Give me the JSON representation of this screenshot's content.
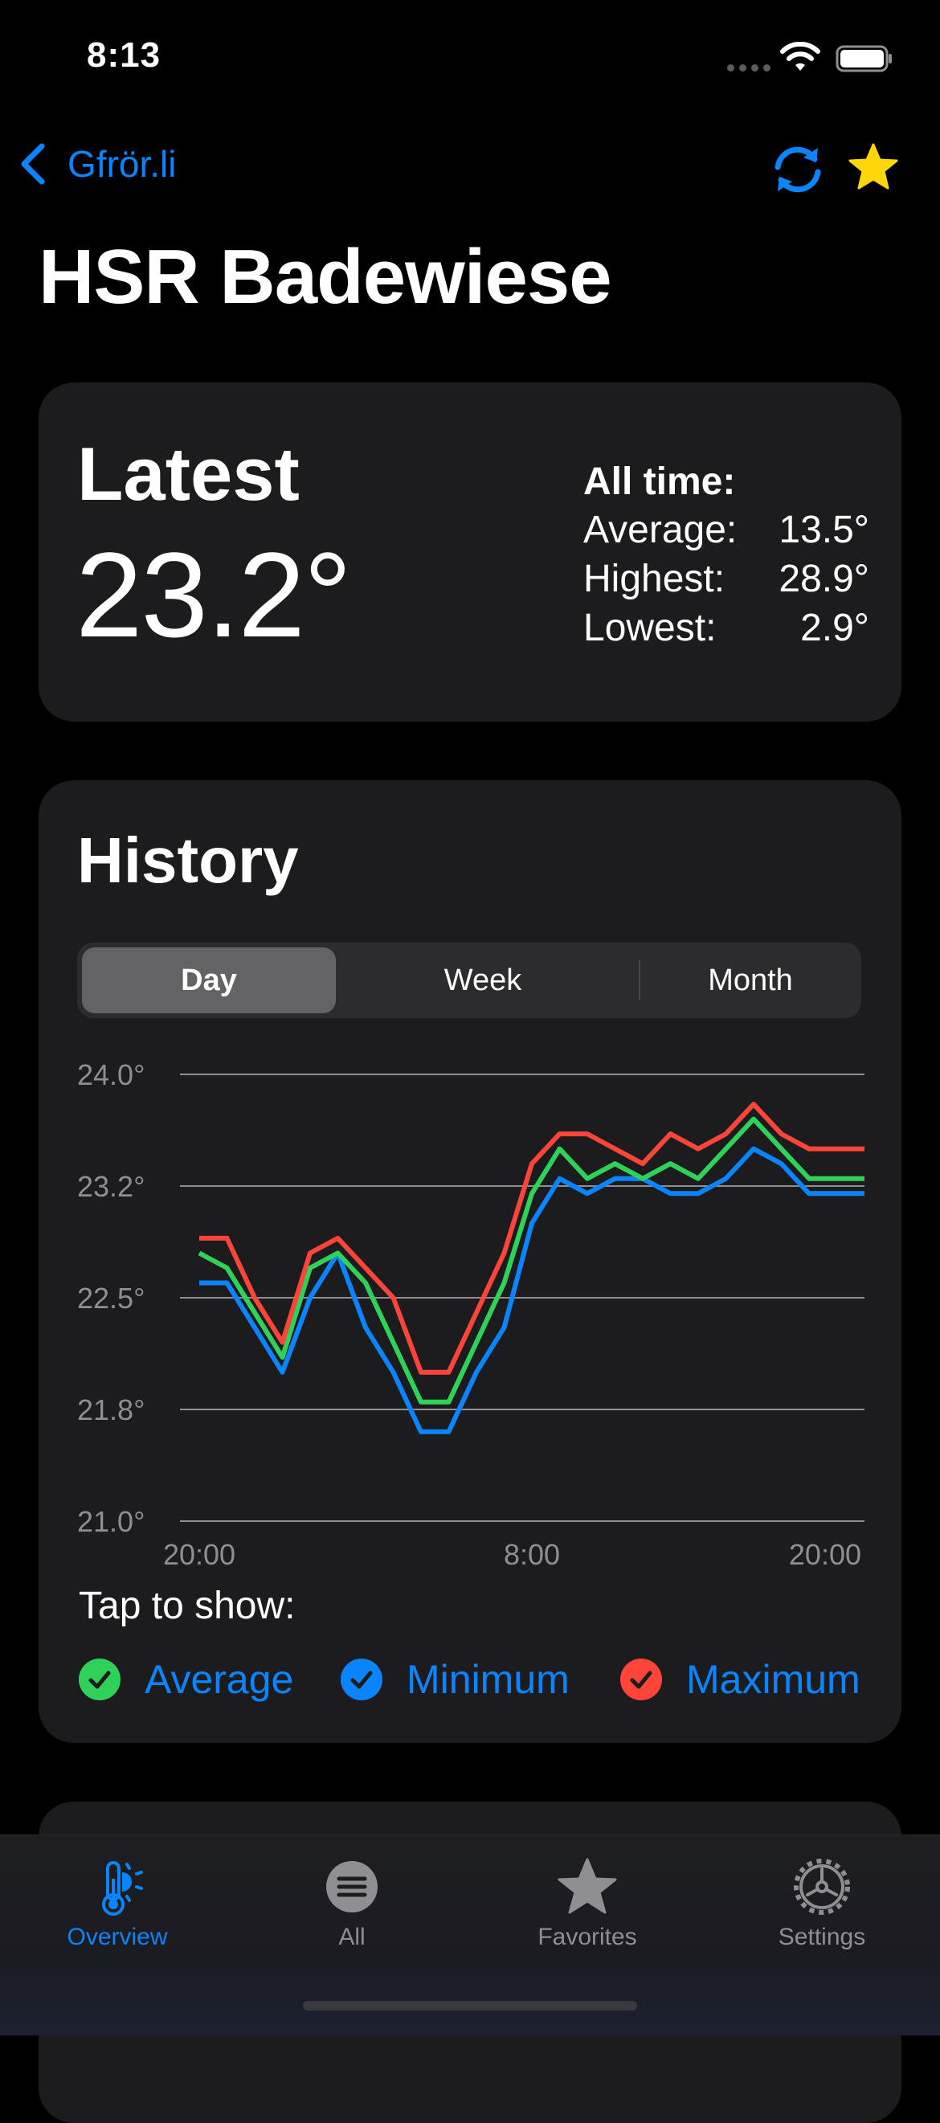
{
  "status": {
    "time": "8:13"
  },
  "nav": {
    "back_label": "Gfrör.li"
  },
  "title": "HSR Badewiese",
  "latest": {
    "heading": "Latest",
    "value": "23.2°",
    "all_time": {
      "heading": "All time:",
      "average_label": "Average:",
      "average": "13.5°",
      "highest_label": "Highest:",
      "highest": "28.9°",
      "lowest_label": "Lowest:",
      "lowest": "2.9°"
    }
  },
  "history": {
    "heading": "History",
    "segments": [
      "Day",
      "Week",
      "Month"
    ],
    "selected": "Day",
    "tap_label": "Tap to show:",
    "legend": [
      {
        "label": "Average",
        "color": "#30d158"
      },
      {
        "label": "Minimum",
        "color": "#0a84ff"
      },
      {
        "label": "Maximum",
        "color": "#ff453a"
      }
    ]
  },
  "chart_data": {
    "type": "line",
    "ylim": [
      21.0,
      24.0
    ],
    "y_ticks": [
      "24.0°",
      "23.2°",
      "22.5°",
      "21.8°",
      "21.0°"
    ],
    "x_tick_labels": [
      "20:00",
      "8:00",
      "20:00"
    ],
    "x": [
      0,
      1,
      2,
      3,
      4,
      5,
      6,
      7,
      8,
      9,
      10,
      11,
      12,
      13,
      14,
      15,
      16,
      17,
      18,
      19,
      20,
      21,
      22,
      23,
      24
    ],
    "series": [
      {
        "name": "Maximum",
        "color": "#ff453a",
        "values": [
          22.9,
          22.9,
          22.5,
          22.2,
          22.8,
          22.9,
          22.7,
          22.5,
          22.0,
          22.0,
          22.4,
          22.8,
          23.4,
          23.6,
          23.6,
          23.5,
          23.4,
          23.6,
          23.5,
          23.6,
          23.8,
          23.6,
          23.5,
          23.5,
          23.5
        ]
      },
      {
        "name": "Average",
        "color": "#30d158",
        "values": [
          22.8,
          22.7,
          22.4,
          22.1,
          22.7,
          22.8,
          22.6,
          22.2,
          21.8,
          21.8,
          22.2,
          22.6,
          23.2,
          23.5,
          23.3,
          23.4,
          23.3,
          23.4,
          23.3,
          23.5,
          23.7,
          23.5,
          23.3,
          23.3,
          23.3
        ]
      },
      {
        "name": "Minimum",
        "color": "#0a84ff",
        "values": [
          22.6,
          22.6,
          22.3,
          22.0,
          22.5,
          22.8,
          22.3,
          22.0,
          21.6,
          21.6,
          22.0,
          22.3,
          23.0,
          23.3,
          23.2,
          23.3,
          23.3,
          23.2,
          23.2,
          23.3,
          23.5,
          23.4,
          23.2,
          23.2,
          23.2
        ]
      }
    ]
  },
  "tabs": [
    {
      "label": "Overview",
      "icon": "thermometer-sun-icon",
      "active": true
    },
    {
      "label": "All",
      "icon": "list-circle-icon",
      "active": false
    },
    {
      "label": "Favorites",
      "icon": "star-icon",
      "active": false
    },
    {
      "label": "Settings",
      "icon": "gear-icon",
      "active": false
    }
  ]
}
